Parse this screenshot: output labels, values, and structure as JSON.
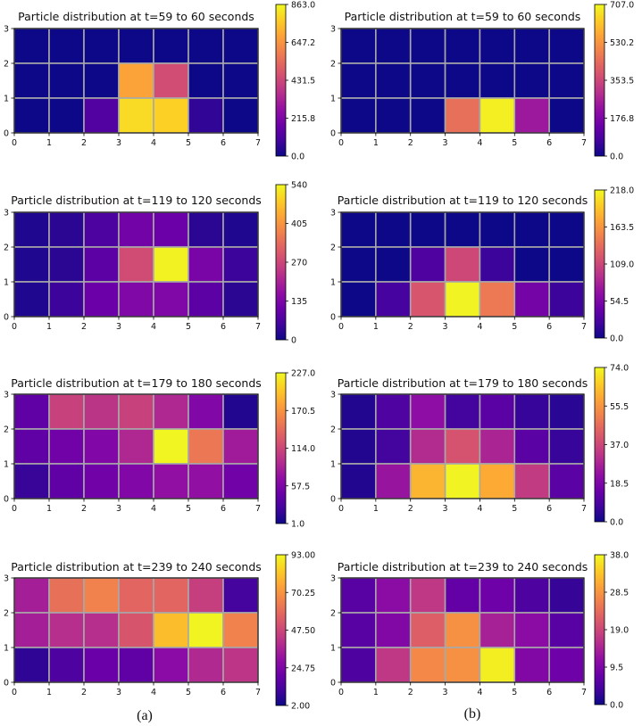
{
  "chart_data": [
    {
      "type": "heatmap",
      "column": "a",
      "row": 0,
      "title": "Particle distribution at t=59 to 60 seconds",
      "x_ticks": [
        "0",
        "1",
        "2",
        "3",
        "4",
        "5",
        "6",
        "7"
      ],
      "y_ticks": [
        "0",
        "1",
        "2",
        "3"
      ],
      "xlim": [
        0,
        7
      ],
      "ylim": [
        0,
        3
      ],
      "vmin": 0.0,
      "vmax": 863.0,
      "colorbar_ticks": [
        "863.0",
        "647.2",
        "431.5",
        "215.8",
        "0.0"
      ],
      "grid": [
        [
          0,
          0,
          0,
          0,
          0,
          0,
          0
        ],
        [
          0,
          0,
          0,
          680,
          450,
          0,
          0
        ],
        [
          0,
          0,
          120,
          800,
          780,
          60,
          0
        ]
      ]
    },
    {
      "type": "heatmap",
      "column": "b",
      "row": 0,
      "title": "Particle distribution at t=59 to 60 seconds",
      "x_ticks": [
        "0",
        "1",
        "2",
        "3",
        "4",
        "5",
        "6",
        "7"
      ],
      "y_ticks": [
        "0",
        "1",
        "2",
        "3"
      ],
      "xlim": [
        0,
        7
      ],
      "ylim": [
        0,
        3
      ],
      "vmin": 0.0,
      "vmax": 707.0,
      "colorbar_ticks": [
        "707.0",
        "530.2",
        "353.5",
        "176.8",
        "0.0"
      ],
      "grid": [
        [
          0,
          0,
          0,
          0,
          0,
          0,
          0
        ],
        [
          0,
          0,
          0,
          0,
          0,
          0,
          0
        ],
        [
          0,
          0,
          0,
          450,
          690,
          240,
          0
        ]
      ]
    },
    {
      "type": "heatmap",
      "column": "a",
      "row": 1,
      "title": "Particle distribution at t=119 to 120 seconds",
      "x_ticks": [
        "0",
        "1",
        "2",
        "3",
        "4",
        "5",
        "6",
        "7"
      ],
      "y_ticks": [
        "0",
        "1",
        "2",
        "3"
      ],
      "xlim": [
        0,
        7
      ],
      "ylim": [
        0,
        3
      ],
      "vmin": 0,
      "vmax": 540,
      "colorbar_ticks": [
        "540",
        "405",
        "270",
        "135",
        "0"
      ],
      "grid": [
        [
          20,
          30,
          70,
          120,
          110,
          30,
          20
        ],
        [
          20,
          30,
          90,
          280,
          530,
          130,
          50
        ],
        [
          20,
          50,
          110,
          140,
          140,
          90,
          30
        ]
      ]
    },
    {
      "type": "heatmap",
      "column": "b",
      "row": 1,
      "title": "Particle distribution at t=119 to 120 seconds",
      "x_ticks": [
        "0",
        "1",
        "2",
        "3",
        "4",
        "5",
        "6",
        "7"
      ],
      "y_ticks": [
        "0",
        "1",
        "2",
        "3"
      ],
      "xlim": [
        0,
        7
      ],
      "ylim": [
        0,
        3
      ],
      "vmin": 0.0,
      "vmax": 218.0,
      "colorbar_ticks": [
        "218.0",
        "163.5",
        "109.0",
        "54.5",
        "0.0"
      ],
      "grid": [
        [
          0,
          0,
          0,
          0,
          0,
          0,
          0
        ],
        [
          0,
          0,
          30,
          110,
          20,
          0,
          0
        ],
        [
          0,
          25,
          120,
          215,
          145,
          50,
          20
        ]
      ]
    },
    {
      "type": "heatmap",
      "column": "a",
      "row": 2,
      "title": "Particle distribution at t=179 to 180 seconds",
      "x_ticks": [
        "0",
        "1",
        "2",
        "3",
        "4",
        "5",
        "6",
        "7"
      ],
      "y_ticks": [
        "0",
        "1",
        "2",
        "3"
      ],
      "xlim": [
        0,
        7
      ],
      "ylim": [
        0,
        3
      ],
      "vmin": 1.0,
      "vmax": 227.0,
      "colorbar_ticks": [
        "227.0",
        "170.5",
        "114.0",
        "57.5",
        "1.0"
      ],
      "grid": [
        [
          40,
          110,
          100,
          110,
          90,
          60,
          10
        ],
        [
          40,
          50,
          60,
          90,
          225,
          150,
          80
        ],
        [
          20,
          40,
          50,
          60,
          70,
          70,
          50
        ]
      ]
    },
    {
      "type": "heatmap",
      "column": "b",
      "row": 2,
      "title": "Particle distribution at t=179 to 180 seconds",
      "x_ticks": [
        "0",
        "1",
        "2",
        "3",
        "4",
        "5",
        "6",
        "7"
      ],
      "y_ticks": [
        "0",
        "1",
        "2",
        "3"
      ],
      "xlim": [
        0,
        7
      ],
      "ylim": [
        0,
        3
      ],
      "vmin": 0.0,
      "vmax": 74.0,
      "colorbar_ticks": [
        "74.0",
        "55.5",
        "37.0",
        "18.5",
        "0.0"
      ],
      "grid": [
        [
          3,
          10,
          22,
          8,
          12,
          6,
          4
        ],
        [
          3,
          8,
          30,
          40,
          28,
          12,
          6
        ],
        [
          3,
          24,
          62,
          73,
          60,
          34,
          12
        ]
      ]
    },
    {
      "type": "heatmap",
      "column": "a",
      "row": 3,
      "title": "Particle distribution at t=239 to 240 seconds",
      "x_ticks": [
        "0",
        "1",
        "2",
        "3",
        "4",
        "5",
        "6",
        "7"
      ],
      "y_ticks": [
        "0",
        "1",
        "2",
        "3"
      ],
      "xlim": [
        0,
        7
      ],
      "ylim": [
        0,
        3
      ],
      "vmin": 2.0,
      "vmax": 93.0,
      "colorbar_ticks": [
        "93.00",
        "70.25",
        "47.50",
        "24.75",
        "2.00"
      ],
      "grid": [
        [
          35,
          60,
          65,
          57,
          57,
          45,
          12
        ],
        [
          35,
          40,
          40,
          52,
          80,
          92,
          65
        ],
        [
          8,
          14,
          20,
          18,
          28,
          38,
          42
        ]
      ]
    },
    {
      "type": "heatmap",
      "column": "b",
      "row": 3,
      "title": "Particle distribution at t=239 to 240 seconds",
      "x_ticks": [
        "0",
        "1",
        "2",
        "3",
        "4",
        "5",
        "6",
        "7"
      ],
      "y_ticks": [
        "0",
        "1",
        "2",
        "3"
      ],
      "xlim": [
        0,
        7
      ],
      "ylim": [
        0,
        3
      ],
      "vmin": 0.0,
      "vmax": 38.0,
      "colorbar_ticks": [
        "38.0",
        "28.5",
        "19.0",
        "9.5",
        "0.0"
      ],
      "grid": [
        [
          6,
          11,
          17,
          7,
          8,
          5,
          3
        ],
        [
          6,
          10,
          22,
          28,
          14,
          11,
          6
        ],
        [
          5,
          17,
          27,
          28,
          37,
          10,
          8
        ]
      ]
    }
  ],
  "labels": {
    "a": "(a)",
    "b": "(b)"
  }
}
